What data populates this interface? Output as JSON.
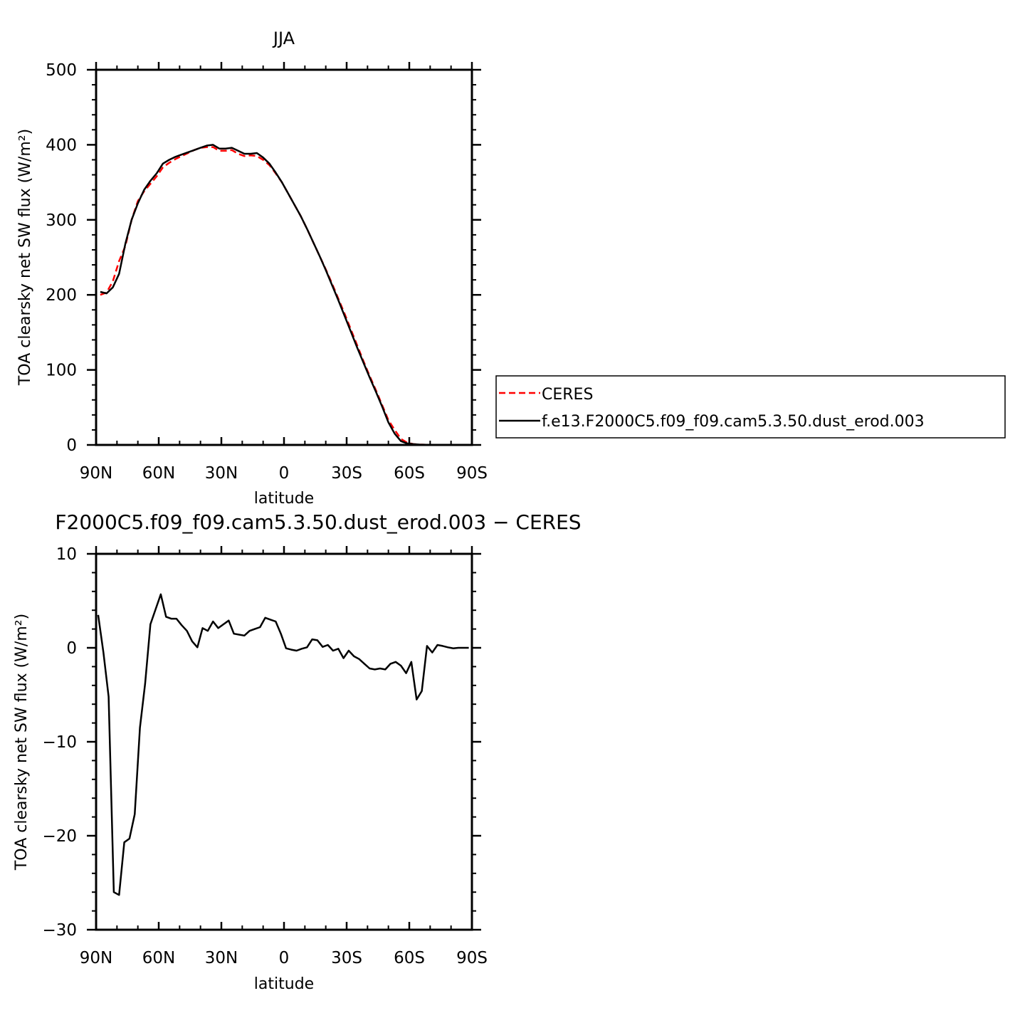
{
  "chart_data": [
    {
      "type": "line",
      "title": "JJA",
      "xlabel": "latitude",
      "ylabel": "TOA clearsky net SW flux (W/m²)",
      "xlim": [
        90,
        -90
      ],
      "ylim": [
        0,
        500
      ],
      "x_ticks": [
        90,
        60,
        30,
        0,
        -30,
        -60,
        -90
      ],
      "x_tick_labels": [
        "90N",
        "60N",
        "30N",
        "0",
        "30S",
        "60S",
        "90S"
      ],
      "y_ticks": [
        0,
        100,
        200,
        300,
        400,
        500
      ],
      "y_tick_labels": [
        "0",
        "100",
        "200",
        "300",
        "400",
        "500"
      ],
      "grid": false,
      "legend_position": "right",
      "series": [
        {
          "name": "CERES",
          "color": "#ff0000",
          "dash": "dashed",
          "x": [
            88,
            85,
            82,
            79,
            76,
            73,
            70,
            67,
            64,
            61,
            58,
            55,
            52,
            49,
            46,
            43,
            40,
            37,
            34,
            31,
            28,
            25,
            22,
            19,
            16,
            13,
            10,
            7,
            4,
            1,
            -2,
            -5,
            -8,
            -11,
            -14,
            -17,
            -20,
            -23,
            -26,
            -29,
            -32,
            -35,
            -38,
            -41,
            -44,
            -47,
            -50,
            -53,
            -56,
            -59,
            -62,
            -65,
            -68,
            -71,
            -74,
            -77,
            -80,
            -83,
            -86,
            -89
          ],
          "y": [
            200,
            203,
            218,
            245,
            265,
            300,
            325,
            338,
            348,
            358,
            370,
            376,
            381,
            385,
            389,
            393,
            396,
            397,
            397,
            392,
            392,
            393,
            388,
            385,
            386,
            385,
            380,
            373,
            362,
            350,
            335,
            320,
            305,
            288,
            270,
            252,
            234,
            215,
            195,
            175,
            154,
            133,
            112,
            92,
            73,
            53,
            33,
            20,
            8,
            3,
            1,
            0.5,
            0.2,
            0,
            0,
            0,
            0,
            0,
            0,
            0
          ]
        },
        {
          "name": "f.e13.F2000C5.f09_f09.cam5.3.50.dust_erod.003",
          "color": "#000000",
          "dash": "solid",
          "x": [
            88,
            85,
            82,
            79,
            76,
            73,
            70,
            67,
            64,
            61,
            58,
            55,
            52,
            49,
            46,
            43,
            40,
            37,
            34,
            31,
            28,
            25,
            22,
            19,
            16,
            13,
            10,
            7,
            4,
            1,
            -2,
            -5,
            -8,
            -11,
            -14,
            -17,
            -20,
            -23,
            -26,
            -29,
            -32,
            -35,
            -38,
            -41,
            -44,
            -47,
            -50,
            -53,
            -56,
            -59,
            -62,
            -65,
            -68,
            -71,
            -74,
            -77,
            -80,
            -83,
            -86,
            -89
          ],
          "y": [
            204,
            202,
            210,
            228,
            268,
            300,
            322,
            340,
            352,
            362,
            375,
            380,
            384,
            387,
            390,
            393,
            396,
            399,
            400,
            395,
            395,
            396,
            392,
            388,
            388,
            389,
            383,
            375,
            363,
            350,
            335,
            320,
            305,
            288,
            270,
            252,
            233,
            213,
            193,
            172,
            151,
            130,
            110,
            90,
            71,
            51,
            30,
            15,
            5,
            2,
            1,
            0.5,
            0.2,
            0,
            0,
            0,
            0,
            0,
            0,
            0
          ]
        }
      ]
    },
    {
      "type": "line",
      "title": "F2000C5.f09_f09.cam5.3.50.dust_erod.003 − CERES",
      "xlabel": "latitude",
      "ylabel": "TOA clearsky net SW flux (W/m²)",
      "xlim": [
        90,
        -90
      ],
      "ylim": [
        -30,
        10
      ],
      "x_ticks": [
        90,
        60,
        30,
        0,
        -30,
        -60,
        -90
      ],
      "x_tick_labels": [
        "90N",
        "60N",
        "30N",
        "0",
        "30S",
        "60S",
        "90S"
      ],
      "y_ticks": [
        -30,
        -20,
        -10,
        0,
        10
      ],
      "y_tick_labels": [
        "−30",
        "−20",
        "−10",
        "0",
        "10"
      ],
      "grid": false,
      "series": [
        {
          "color": "#000000",
          "dash": "solid",
          "x": [
            89,
            86.5,
            84,
            81.5,
            79,
            76.5,
            74,
            71.5,
            69,
            66.5,
            64,
            61.5,
            59,
            56.5,
            54,
            51.5,
            49,
            46.5,
            44,
            41.5,
            39,
            36.5,
            34,
            31.5,
            29,
            26.5,
            24,
            21.5,
            19,
            16.5,
            14,
            11.5,
            9,
            6.5,
            4,
            1.5,
            -1,
            -3.5,
            -6,
            -8.5,
            -11,
            -13.5,
            -16,
            -18.5,
            -21,
            -23.5,
            -26,
            -28.5,
            -31,
            -33.5,
            -36,
            -38.5,
            -41,
            -43.5,
            -46,
            -48.5,
            -51,
            -53.5,
            -56,
            -58.5,
            -61,
            -63.5,
            -66,
            -68.5,
            -71,
            -73.5,
            -76,
            -78.5,
            -81,
            -83.5,
            -86,
            -88.5
          ],
          "y": [
            3.5,
            -0.5,
            -5.2,
            -26,
            -26.3,
            -20.7,
            -20.3,
            -17.7,
            -8.5,
            -3.8,
            2.5,
            4.1,
            5.7,
            3.3,
            3.1,
            3.1,
            2.4,
            1.8,
            0.7,
            0.05,
            2.1,
            1.8,
            2.8,
            2.1,
            2.5,
            2.9,
            1.5,
            1.4,
            1.3,
            1.8,
            2.0,
            2.2,
            3.2,
            3.0,
            2.8,
            1.5,
            -0.05,
            -0.2,
            -0.3,
            -0.1,
            0.05,
            0.9,
            0.8,
            0.1,
            0.3,
            -0.3,
            -0.1,
            -1.1,
            -0.3,
            -0.9,
            -1.2,
            -1.7,
            -2.2,
            -2.3,
            -2.2,
            -2.3,
            -1.7,
            -1.5,
            -1.9,
            -2.7,
            -1.5,
            -5.5,
            -4.6,
            0.2,
            -0.5,
            0.3,
            0.2,
            0.05,
            -0.05,
            0,
            0,
            0
          ]
        }
      ]
    }
  ]
}
